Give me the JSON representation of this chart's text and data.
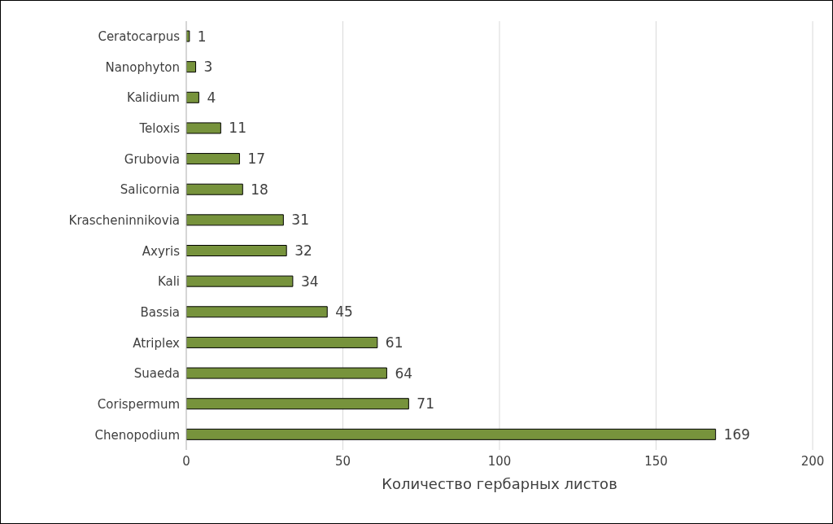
{
  "chart_data": {
    "type": "bar",
    "orientation": "horizontal",
    "xlabel": "Количество гербарных листов",
    "categories": [
      "Ceratocarpus",
      "Nanophyton",
      "Kalidium",
      "Teloxis",
      "Grubovia",
      "Salicornia",
      "Krascheninnikovia",
      "Axyris",
      "Kali",
      "Bassia",
      "Atriplex",
      "Suaeda",
      "Corispermum",
      "Chenopodium"
    ],
    "values": [
      1,
      3,
      4,
      11,
      17,
      18,
      31,
      32,
      34,
      45,
      61,
      64,
      71,
      169
    ],
    "color": "#77933c",
    "xlim": [
      0,
      200
    ],
    "xticks": [
      0,
      50,
      100,
      150,
      200
    ],
    "grid": "x",
    "data_labels": true,
    "legend": false
  }
}
